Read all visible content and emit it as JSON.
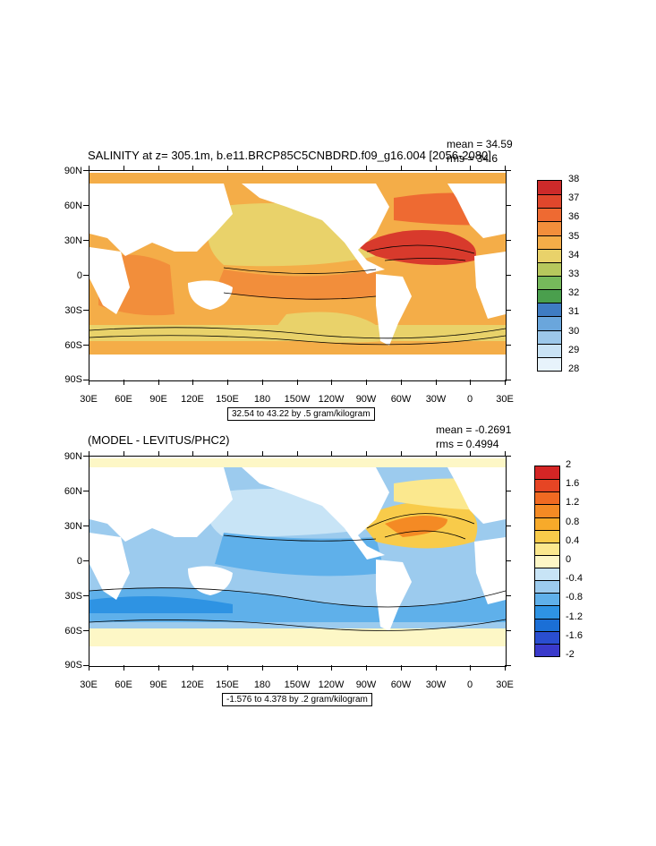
{
  "panels": [
    {
      "title": "SALINITY at z= 305.1m, b.e11.BRCP85C5CNBDRD.f09_g16.004 [2056-2080]",
      "mean": "mean = 34.59",
      "rms": "rms = 34.6",
      "info": "32.54 to 43.22 by .5 gram/kilogram",
      "colorbar": {
        "labels": [
          "38",
          "37",
          "36",
          "35",
          "34",
          "33",
          "32",
          "31",
          "30",
          "29",
          "28"
        ],
        "colors": [
          "#cc2a2a",
          "#e0472c",
          "#ee6a32",
          "#f28e3b",
          "#f4ad48",
          "#e9d26a",
          "#b7c85d",
          "#76b95b",
          "#4a9f4d",
          "#3f7cc2",
          "#6aa6dc",
          "#9cc8ea",
          "#c9e3f5",
          "#e7f3fb"
        ]
      }
    },
    {
      "title": "(MODEL - LEVITUS/PHC2)",
      "mean": "mean = -0.2691",
      "rms": "rms = 0.4994",
      "info": "-1.576 to 4.378 by .2 gram/kilogram",
      "colorbar": {
        "labels": [
          "2",
          "1.6",
          "1.2",
          "0.8",
          "0.4",
          "0",
          "-0.4",
          "-0.8",
          "-1.2",
          "-1.6",
          "-2"
        ],
        "colors": [
          "#d42525",
          "#e64524",
          "#f06a22",
          "#f48a24",
          "#f7aa2a",
          "#f8cb4a",
          "#fbe88e",
          "#fdf7c6",
          "#c8e4f6",
          "#9ccbee",
          "#5fb0ea",
          "#2e93e3",
          "#1b6fd6",
          "#2a4ed0",
          "#3a3acb"
        ]
      }
    }
  ],
  "axes": {
    "lat_labels": [
      "90N",
      "60N",
      "30N",
      "0",
      "30S",
      "60S",
      "90S"
    ],
    "lon_labels": [
      "30E",
      "60E",
      "90E",
      "120E",
      "150E",
      "180",
      "150W",
      "120W",
      "90W",
      "60W",
      "30W",
      "0",
      "30E"
    ]
  }
}
